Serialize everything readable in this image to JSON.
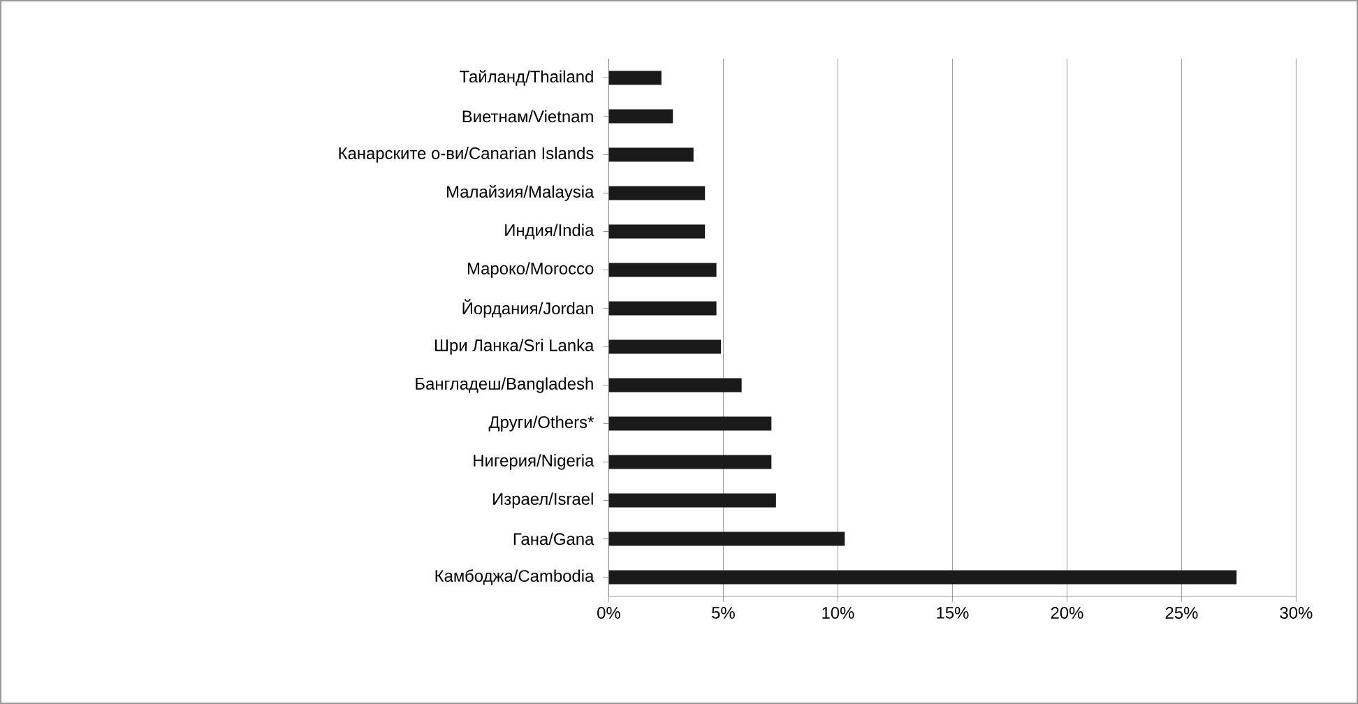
{
  "chart_data": {
    "type": "bar",
    "orientation": "horizontal",
    "categories": [
      "Тайланд/Thailand",
      "Виетнам/Vietnam",
      "Канарските о-ви/Canarian Islands",
      "Малайзия/Malaysia",
      "Индия/India",
      "Мароко/Morocco",
      "Йордания/Jordan",
      "Шри Ланка/Sri Lanka",
      "Бангладеш/Bangladesh",
      "Други/Others*",
      "Нигерия/Nigeria",
      "Израел/Israel",
      "Гана/Gana",
      "Камбоджа/Cambodia"
    ],
    "values": [
      2.3,
      2.8,
      3.7,
      4.2,
      4.2,
      4.7,
      4.7,
      4.9,
      5.8,
      7.1,
      7.1,
      7.3,
      10.3,
      27.4
    ],
    "color": "#1a1a1a",
    "xlim": [
      0,
      30
    ],
    "xticks": [
      {
        "value": 0,
        "label": "0%"
      },
      {
        "value": 5,
        "label": "5%"
      },
      {
        "value": 10,
        "label": "10%"
      },
      {
        "value": 15,
        "label": "15%"
      },
      {
        "value": 20,
        "label": "20%"
      },
      {
        "value": 25,
        "label": "25%"
      },
      {
        "value": 30,
        "label": "30%"
      }
    ],
    "grid": "x"
  }
}
